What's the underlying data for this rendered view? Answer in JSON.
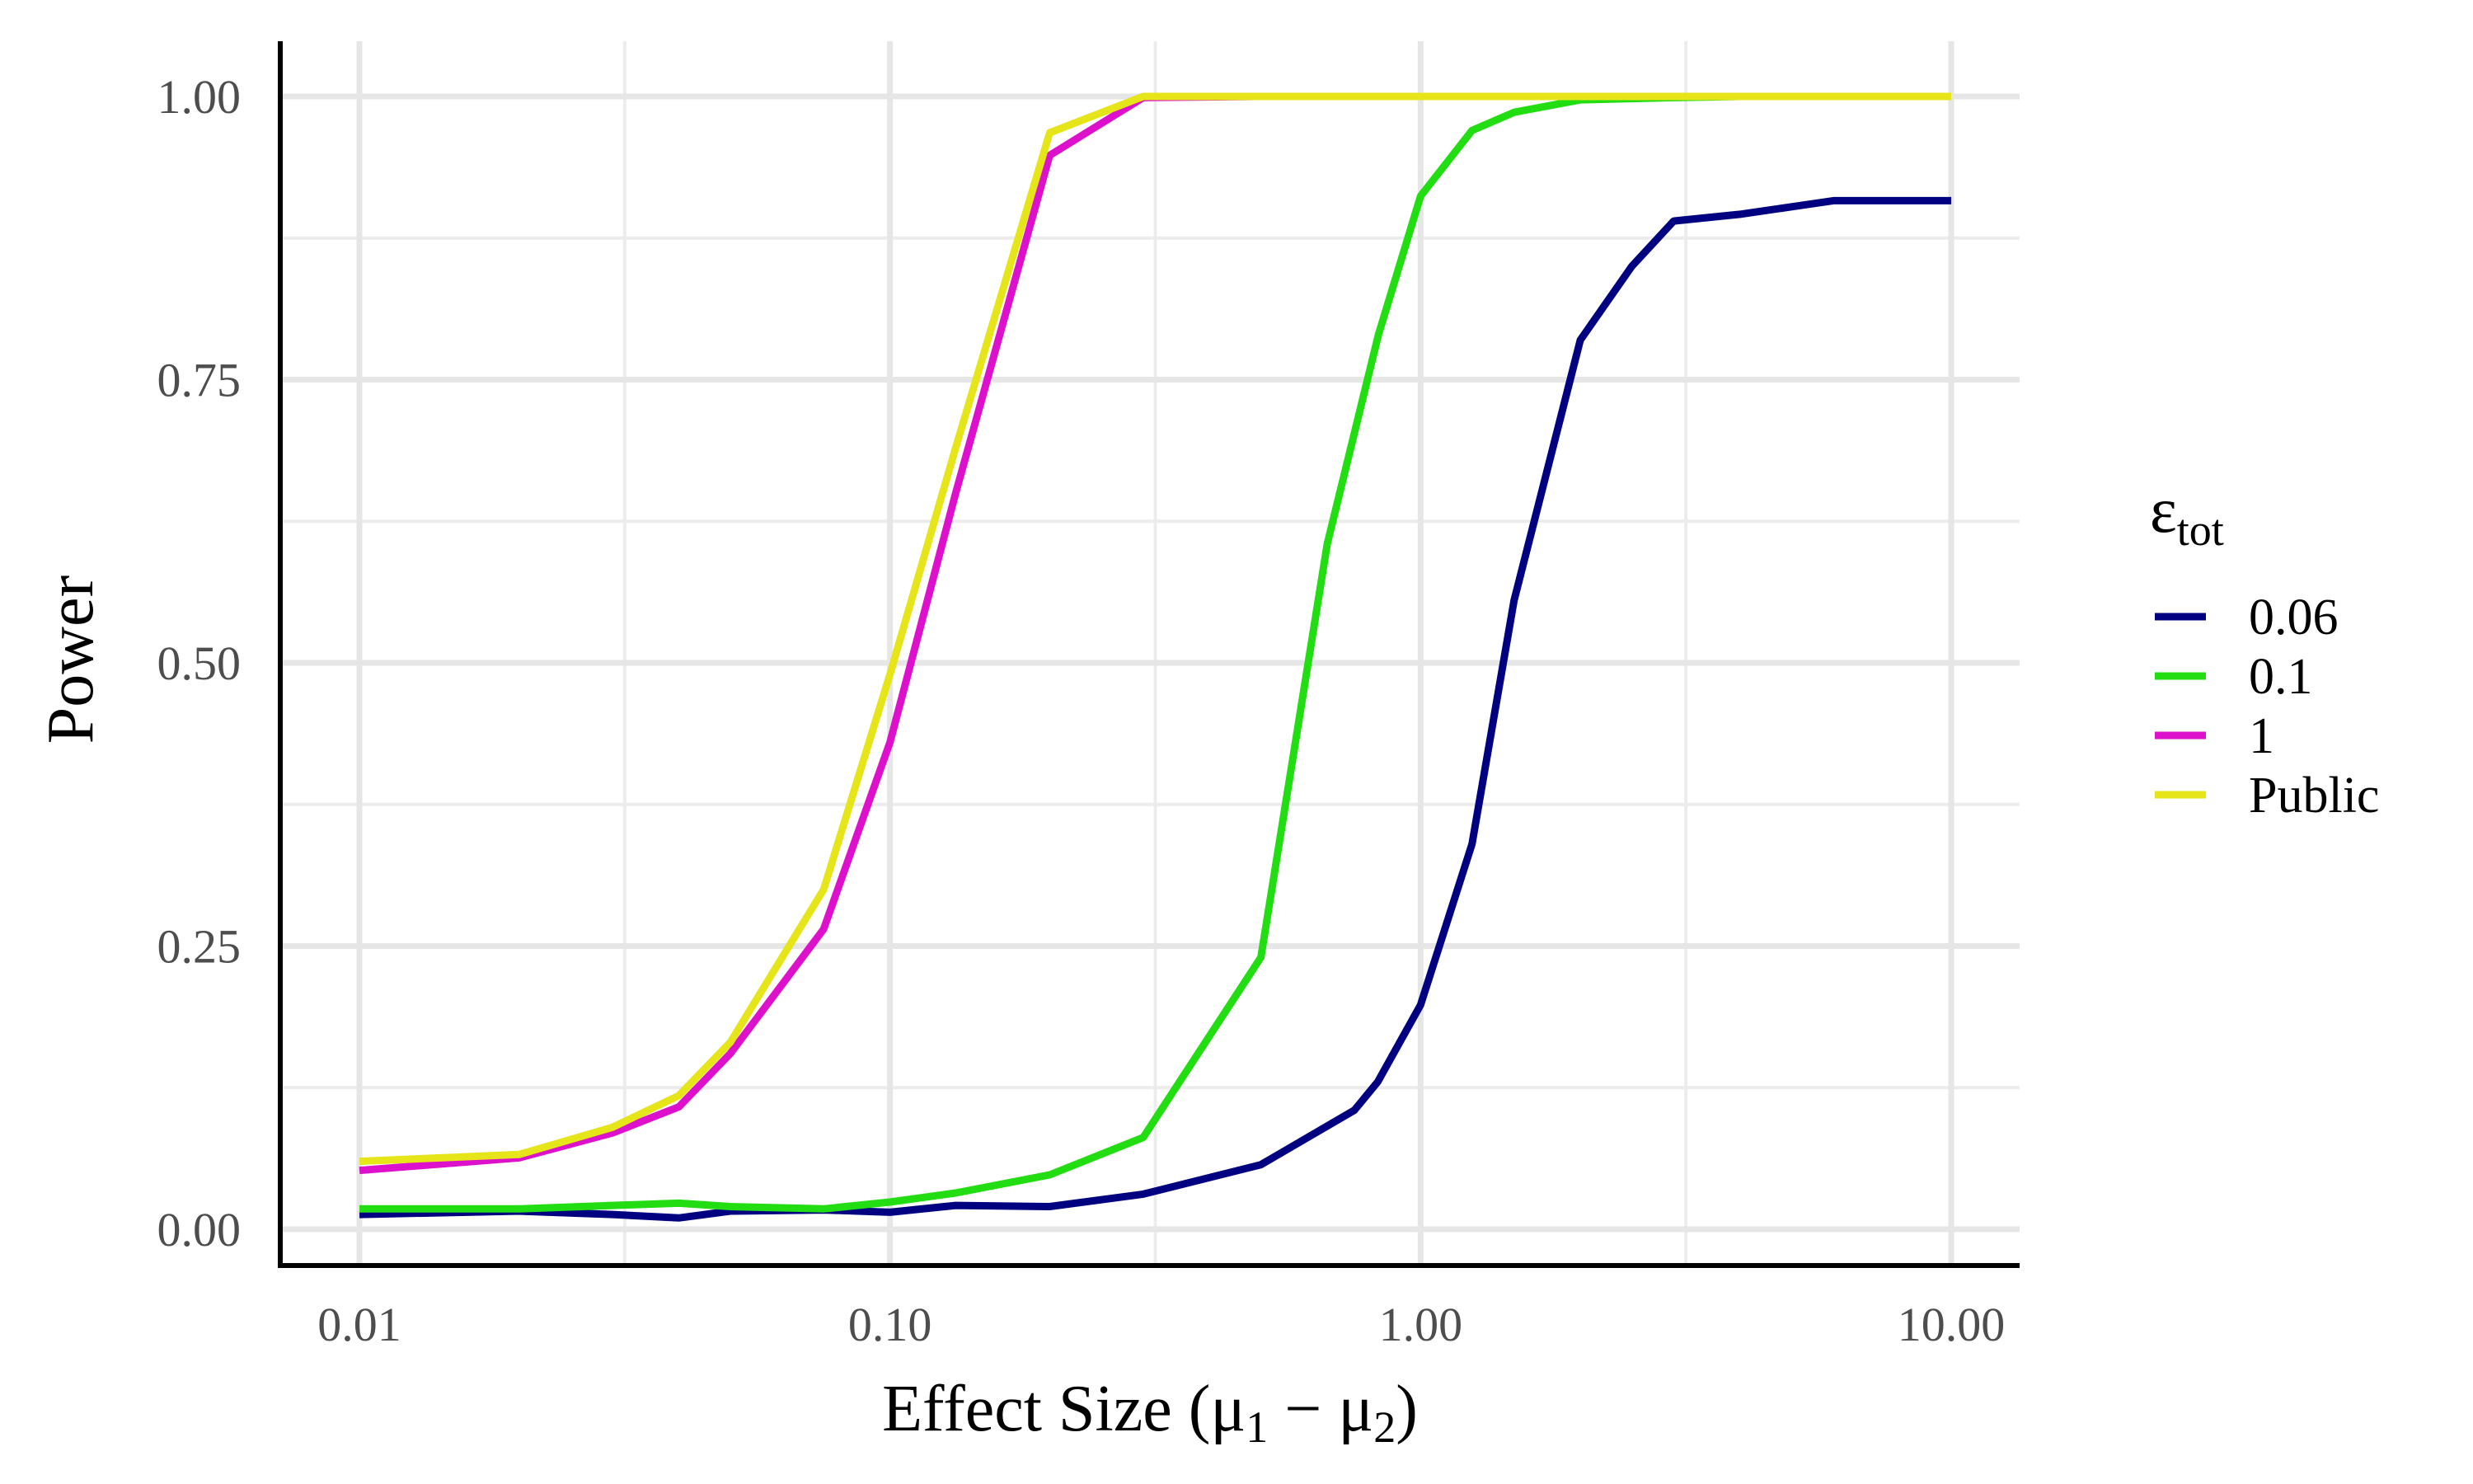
{
  "chart_data": {
    "type": "line",
    "xlabel": "Effect Size (μ",
    "xlabel_sub1": "1",
    "xlabel_mid": " − μ",
    "xlabel_sub2": "2",
    "xlabel_end": ")",
    "ylabel": "Power",
    "x_scale": "log10",
    "xlim": [
      0.01,
      10
    ],
    "ylim": [
      0,
      1
    ],
    "x_ticks": [
      {
        "value": 0.01,
        "label": "0.01"
      },
      {
        "value": 0.1,
        "label": "0.10"
      },
      {
        "value": 1,
        "label": "1.00"
      },
      {
        "value": 10,
        "label": "10.00"
      }
    ],
    "y_ticks": [
      {
        "value": 0,
        "label": "0.00"
      },
      {
        "value": 0.25,
        "label": "0.25"
      },
      {
        "value": 0.5,
        "label": "0.50"
      },
      {
        "value": 0.75,
        "label": "0.75"
      },
      {
        "value": 1,
        "label": "1.00"
      }
    ],
    "grid": true,
    "legend": {
      "position": "right",
      "title_main": "ε",
      "title_sub": "tot"
    },
    "series": [
      {
        "name": "0.06",
        "color": "#000080",
        "points": [
          [
            0.01,
            0.013
          ],
          [
            0.02,
            0.016
          ],
          [
            0.03,
            0.013
          ],
          [
            0.04,
            0.01
          ],
          [
            0.05,
            0.016
          ],
          [
            0.075,
            0.017
          ],
          [
            0.1,
            0.015
          ],
          [
            0.133,
            0.021
          ],
          [
            0.2,
            0.02
          ],
          [
            0.3,
            0.031
          ],
          [
            0.5,
            0.057
          ],
          [
            0.75,
            0.105
          ],
          [
            0.83,
            0.13
          ],
          [
            1.0,
            0.198
          ],
          [
            1.25,
            0.34
          ],
          [
            1.5,
            0.555
          ],
          [
            2.0,
            0.785
          ],
          [
            2.5,
            0.85
          ],
          [
            3.0,
            0.89
          ],
          [
            4.0,
            0.896
          ],
          [
            6.0,
            0.908
          ],
          [
            10.0,
            0.908
          ]
        ]
      },
      {
        "name": "0.1",
        "color": "#22dd11",
        "points": [
          [
            0.01,
            0.018
          ],
          [
            0.02,
            0.018
          ],
          [
            0.03,
            0.021
          ],
          [
            0.04,
            0.023
          ],
          [
            0.05,
            0.02
          ],
          [
            0.075,
            0.018
          ],
          [
            0.1,
            0.024
          ],
          [
            0.133,
            0.032
          ],
          [
            0.2,
            0.048
          ],
          [
            0.3,
            0.081
          ],
          [
            0.5,
            0.24
          ],
          [
            0.667,
            0.605
          ],
          [
            0.833,
            0.79
          ],
          [
            1.0,
            0.912
          ],
          [
            1.25,
            0.97
          ],
          [
            1.5,
            0.986
          ],
          [
            2.0,
            0.997
          ],
          [
            3.0,
            0.999
          ],
          [
            4.0,
            1.0
          ],
          [
            10.0,
            1.0
          ]
        ]
      },
      {
        "name": "1",
        "color": "#dd11cc",
        "points": [
          [
            0.01,
            0.052
          ],
          [
            0.02,
            0.063
          ],
          [
            0.03,
            0.085
          ],
          [
            0.04,
            0.108
          ],
          [
            0.05,
            0.155
          ],
          [
            0.075,
            0.265
          ],
          [
            0.1,
            0.43
          ],
          [
            0.133,
            0.65
          ],
          [
            0.2,
            0.948
          ],
          [
            0.3,
            0.999
          ],
          [
            0.5,
            1.0
          ],
          [
            10.0,
            1.0
          ]
        ]
      },
      {
        "name": "Public",
        "color": "#e5e51a",
        "points": [
          [
            0.01,
            0.06
          ],
          [
            0.02,
            0.066
          ],
          [
            0.03,
            0.09
          ],
          [
            0.04,
            0.118
          ],
          [
            0.05,
            0.165
          ],
          [
            0.075,
            0.3
          ],
          [
            0.1,
            0.49
          ],
          [
            0.133,
            0.69
          ],
          [
            0.2,
            0.968
          ],
          [
            0.3,
            1.0
          ],
          [
            10.0,
            1.0
          ]
        ]
      }
    ]
  }
}
